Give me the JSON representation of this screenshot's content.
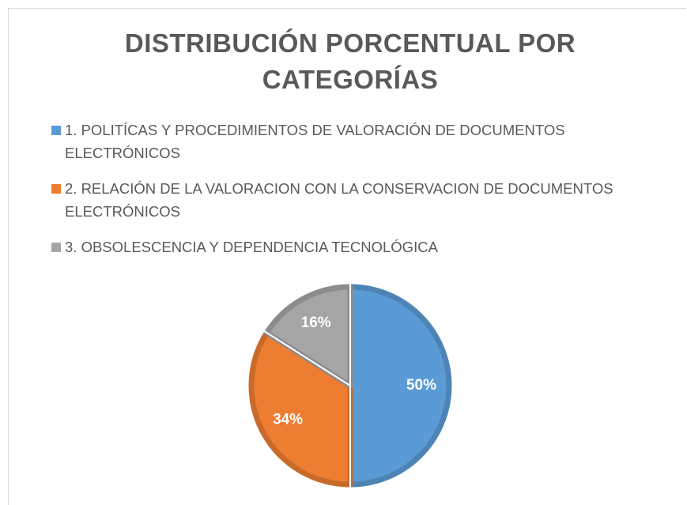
{
  "chart_data": {
    "type": "pie",
    "title": "DISTRIBUCIÓN PORCENTUAL POR CATEGORÍAS",
    "categories": [
      "1. POLITÍCAS Y PROCEDIMIENTOS DE VALORACIÓN DE DOCUMENTOS ELECTRÓNICOS",
      "2. RELACIÓN DE LA VALORACION CON LA CONSERVACION DE DOCUMENTOS ELECTRÓNICOS",
      "3. OBSOLESCENCIA Y DEPENDENCIA TECNOLÓGICA"
    ],
    "values": [
      50,
      34,
      16
    ],
    "value_labels": [
      "50%",
      "34%",
      "16%"
    ],
    "colors": [
      "#5b9bd5",
      "#ed7d31",
      "#a5a5a5"
    ],
    "legend": "top"
  }
}
